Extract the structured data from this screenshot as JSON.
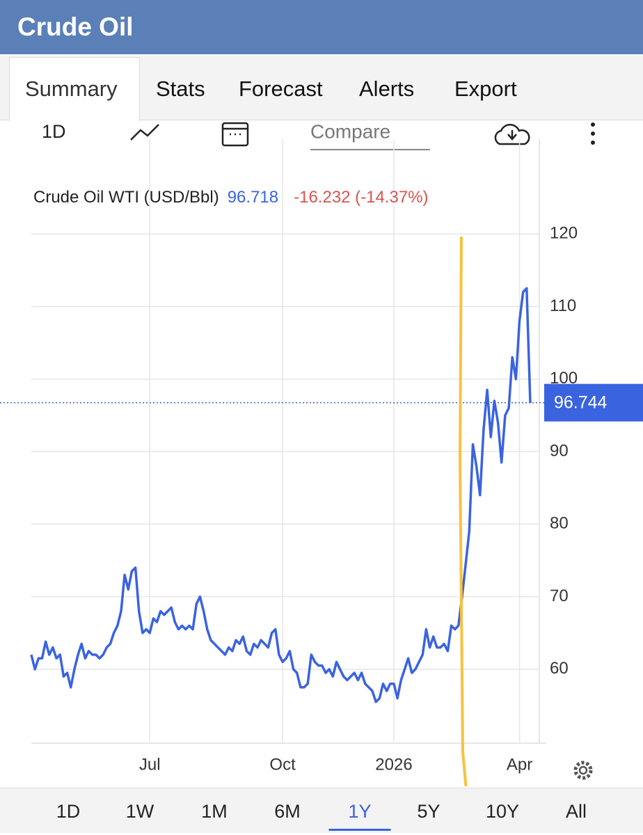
{
  "header": {
    "title": "Crude Oil"
  },
  "tabs": [
    "Summary",
    "Stats",
    "Forecast",
    "Alerts",
    "Export"
  ],
  "toolbar": {
    "interval": "1D",
    "compare_placeholder": "Compare"
  },
  "chart_data": {
    "type": "line",
    "series": [
      {
        "name": "Crude Oil WTI (USD/Bbl)",
        "color": "#3a63e0",
        "values": [
          62,
          60,
          61.5,
          61.5,
          63.8,
          62,
          63,
          61.5,
          62,
          59,
          59.5,
          57.5,
          60,
          62,
          63.5,
          61.5,
          62.5,
          62,
          62,
          61.5,
          62,
          63,
          63.5,
          65,
          66,
          68,
          73,
          71,
          73.5,
          74,
          68,
          65,
          65.5,
          65,
          67,
          66.5,
          68,
          67.5,
          68,
          68.5,
          66.5,
          65.5,
          66,
          65.5,
          66,
          65.5,
          69,
          70,
          68,
          65.5,
          64,
          63.5,
          63,
          62.5,
          62,
          63,
          62.5,
          64,
          63.5,
          64.5,
          62.5,
          62,
          63.5,
          63,
          64,
          63.5,
          63,
          65,
          65.5,
          62,
          61,
          61.5,
          62.5,
          60,
          59.5,
          57.5,
          57.5,
          58,
          62,
          61,
          60.5,
          60.5,
          59.5,
          60,
          59,
          61,
          60,
          59,
          58.5,
          59,
          59.5,
          58.5,
          59.5,
          58,
          57.5,
          57,
          55.5,
          56,
          58,
          57,
          58,
          58,
          56,
          58.5,
          60,
          61.5,
          59.5,
          60,
          61,
          62,
          65.5,
          63,
          64.5,
          63,
          63,
          63.5,
          62.5,
          66,
          65.5,
          66,
          70,
          74.5,
          79,
          91,
          88,
          84,
          93,
          98.5,
          92,
          97,
          94,
          88.5,
          95,
          96,
          103,
          100,
          108,
          112,
          112.5,
          96.7
        ]
      }
    ],
    "categories": [
      null,
      null,
      null,
      null,
      null,
      null,
      null,
      null,
      null,
      null,
      null,
      null,
      null,
      null,
      null,
      null,
      null,
      null,
      null,
      null,
      null,
      null,
      null,
      null,
      null,
      null,
      null,
      null,
      null,
      null,
      null,
      null,
      null,
      "Jul",
      null,
      null,
      null,
      null,
      null,
      null,
      null,
      null,
      null,
      null,
      null,
      null,
      null,
      null,
      null,
      null,
      null,
      null,
      null,
      null,
      null,
      null,
      null,
      null,
      null,
      null,
      null,
      null,
      null,
      null,
      null,
      null,
      null,
      null,
      null,
      null,
      "Oct",
      null,
      null,
      null,
      null,
      null,
      null,
      null,
      null,
      null,
      null,
      null,
      null,
      null,
      null,
      null,
      null,
      null,
      null,
      null,
      null,
      null,
      null,
      null,
      null,
      null,
      null,
      null,
      null,
      null,
      null,
      "2026",
      null,
      null,
      null,
      null,
      null,
      null,
      null,
      null,
      null,
      null,
      null,
      null,
      null,
      null,
      null,
      null,
      null,
      null,
      null,
      null,
      null,
      null,
      null,
      null,
      null,
      null,
      null,
      null,
      null,
      null,
      null,
      null,
      null,
      null,
      "Apr",
      null,
      null,
      null
    ],
    "last_value": 96.718,
    "change_label": "-16.232 (-14.37%)",
    "price_marker": 96.744,
    "ylim": [
      50,
      130
    ],
    "yticks": [
      60,
      70,
      80,
      90,
      100,
      110,
      120
    ],
    "grid": true
  },
  "ranges": [
    "1D",
    "1W",
    "1M",
    "6M",
    "1Y",
    "5Y",
    "10Y",
    "All"
  ]
}
